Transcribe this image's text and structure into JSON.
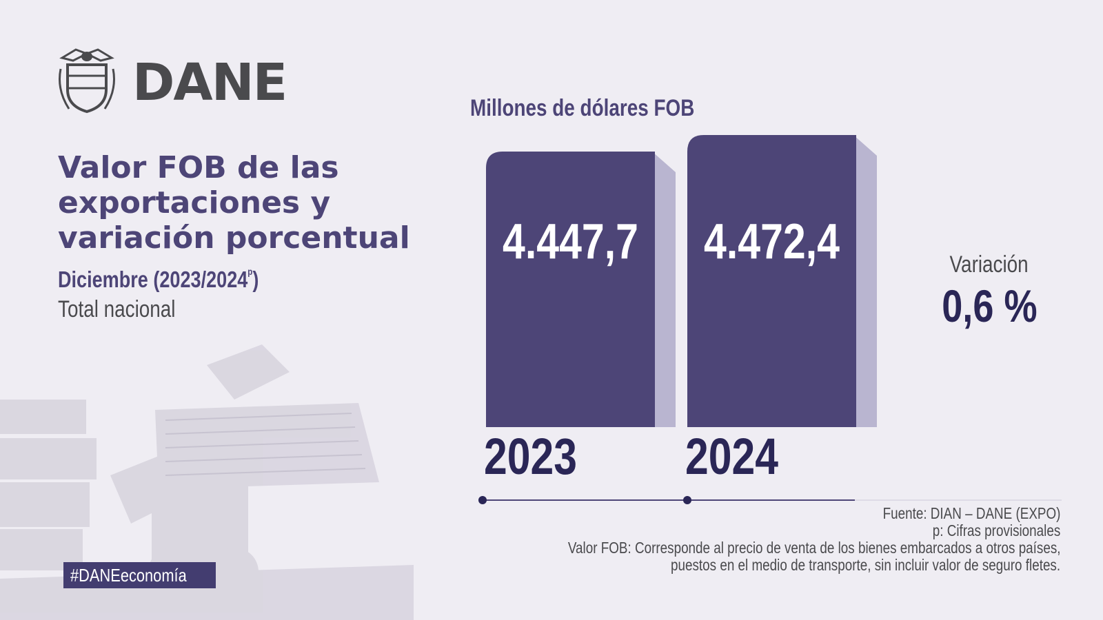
{
  "brand": {
    "logo_text": "DANE",
    "hashtag": "#DANEeconomía"
  },
  "heading": {
    "title_lines": [
      "Valor FOB de las",
      "exportaciones y",
      "variación porcentual"
    ],
    "subtitle_main": "Diciembre (2023/2024",
    "subtitle_sup": "p",
    "subtitle_end": ")",
    "scope": "Total nacional"
  },
  "chart_data": {
    "type": "bar",
    "unit_label": "Millones de dólares FOB",
    "categories": [
      "2023",
      "2024"
    ],
    "values": [
      4447.7,
      4472.4
    ],
    "value_labels": [
      "4.447,7",
      "4.472,4"
    ],
    "variation_label": "Variación",
    "variation_value": "0,6 %"
  },
  "notes": {
    "source": "Fuente: DIAN – DANE (EXPO)",
    "provisional": "p: Cifras provisionales",
    "definition_line1": "Valor FOB: Corresponde al precio de venta de los bienes embarcados a otros países,",
    "definition_line2": "puestos en el medio de transporte, sin incluir valor de seguro fletes."
  },
  "colors": {
    "background": "#efedf3",
    "bar": "#4d4577",
    "bar_shadow": "#b9b5d0",
    "title": "#4d4577",
    "value_text": "#ffffff",
    "year_text": "#2a2656"
  }
}
